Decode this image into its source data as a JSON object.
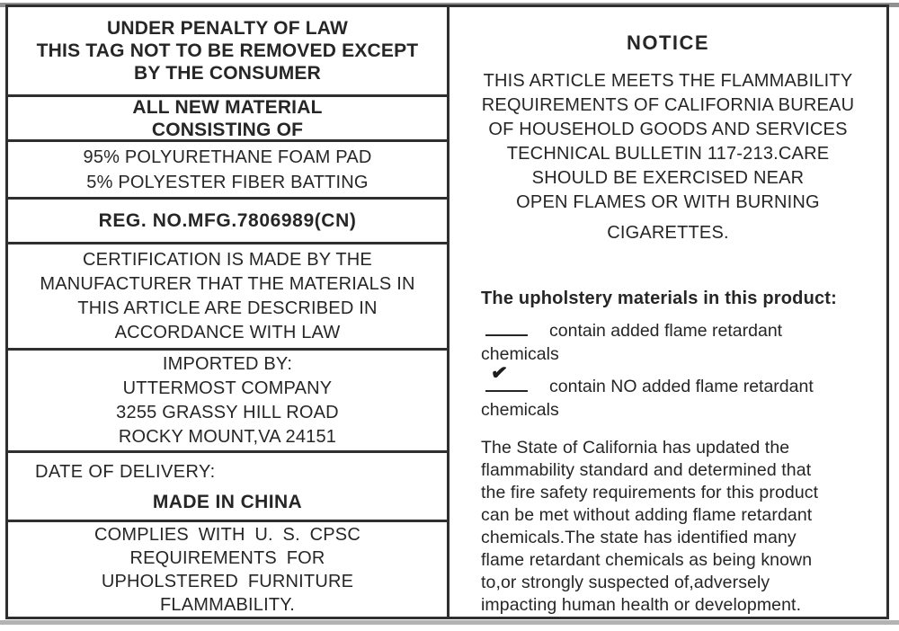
{
  "left_column": {
    "penalty_header": {
      "line1": "UNDER PENALTY OF LAW",
      "line2": "THIS TAG NOT TO BE REMOVED EXCEPT",
      "line3": "BY THE CONSUMER"
    },
    "material_header": {
      "line1": "ALL NEW MATERIAL",
      "line2": "CONSISTING OF"
    },
    "contents": {
      "line1": "95% POLYURETHANE FOAM PAD",
      "line2": "5% POLYESTER FIBER BATTING"
    },
    "registration": "REG. NO.MFG.7806989(CN)",
    "certification": {
      "line1": "CERTIFICATION IS MADE BY THE",
      "line2": "MANUFACTURER THAT THE MATERIALS IN",
      "line3": "THIS ARTICLE ARE DESCRIBED IN",
      "line4": "ACCORDANCE WITH LAW"
    },
    "importer": {
      "line1": "IMPORTED BY:",
      "line2": "UTTERMOST COMPANY",
      "line3": "3255 GRASSY HILL ROAD",
      "line4": "ROCKY MOUNT,VA 24151"
    },
    "delivery": {
      "date_label": "DATE OF DELIVERY:",
      "origin": "MADE IN CHINA"
    },
    "compliance": {
      "line1": "COMPLIES WITH U. S. CPSC",
      "line2": "REQUIREMENTS FOR",
      "line3": "UPHOLSTERED FURNITURE",
      "line4": "FLAMMABILITY."
    }
  },
  "right_column": {
    "notice_title": "NOTICE",
    "notice_body": {
      "line1": "THIS ARTICLE MEETS THE FLAMMABILITY",
      "line2": "REQUIREMENTS OF CALIFORNIA BUREAU",
      "line3": "OF HOUSEHOLD GOODS AND SERVICES",
      "line4": "TECHNICAL BULLETIN 117-213.CARE",
      "line5": "SHOULD BE EXERCISED NEAR",
      "line6": "OPEN FLAMES OR WITH BURNING",
      "line7": "CIGARETTES."
    },
    "upholstery_heading": "The upholstery materials in this product:",
    "flame_retardant_options": {
      "option1_text": "contain added flame retardant",
      "option1_wrap": "chemicals",
      "option2_text": "contain NO added flame retardant",
      "option2_wrap": "chemicals",
      "checked_option": 2,
      "check_glyph": "✔"
    },
    "state_paragraph": {
      "line1": "The State of California has updated the",
      "line2": "flammability standard and determined that",
      "line3": "the fire safety requirements for this product",
      "line4": "can be met without adding flame retardant",
      "line5": "chemicals.The state has identified many",
      "line6": "flame retardant chemicals as being known",
      "line7": "to,or strongly suspected of,adversely",
      "line8": "impacting human health or development."
    }
  },
  "colors": {
    "border": "#2f2f2f",
    "text": "#262626",
    "background": "#ffffff"
  }
}
